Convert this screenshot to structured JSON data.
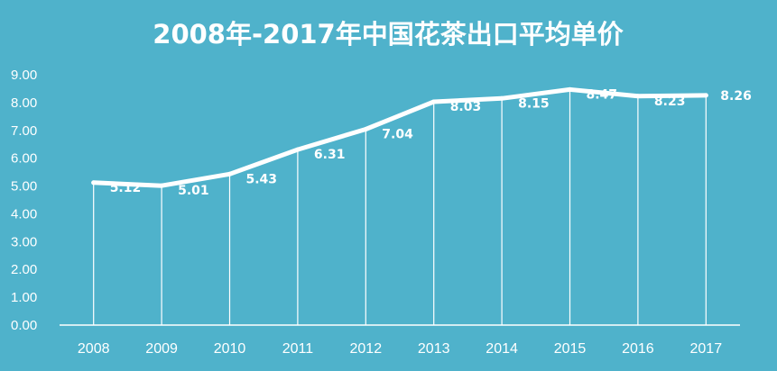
{
  "colors": {
    "background": "#4fb2cb",
    "line": "#ffffff",
    "text": "#ffffff"
  },
  "chart_data": {
    "type": "line",
    "title": "2008年-2017年中国花茶出口平均单价",
    "xlabel": "",
    "ylabel": "",
    "categories": [
      "2008",
      "2009",
      "2010",
      "2011",
      "2012",
      "2013",
      "2014",
      "2015",
      "2016",
      "2017"
    ],
    "series": [
      {
        "values": [
          5.12,
          5.01,
          5.43,
          6.31,
          7.04,
          8.03,
          8.15,
          8.47,
          8.23,
          8.26
        ],
        "labels": [
          "5.12",
          "5.01",
          "5.43",
          "6.31",
          "7.04",
          "8.03",
          "8.15",
          "8.47",
          "8.23",
          "8.26"
        ]
      }
    ],
    "yticks": [
      "0.00",
      "1.00",
      "2.00",
      "3.00",
      "4.00",
      "5.00",
      "6.00",
      "7.00",
      "8.00",
      "9.00"
    ],
    "ylim": [
      0,
      9
    ],
    "grid": "vertical drop lines at each category",
    "legend": "none"
  }
}
